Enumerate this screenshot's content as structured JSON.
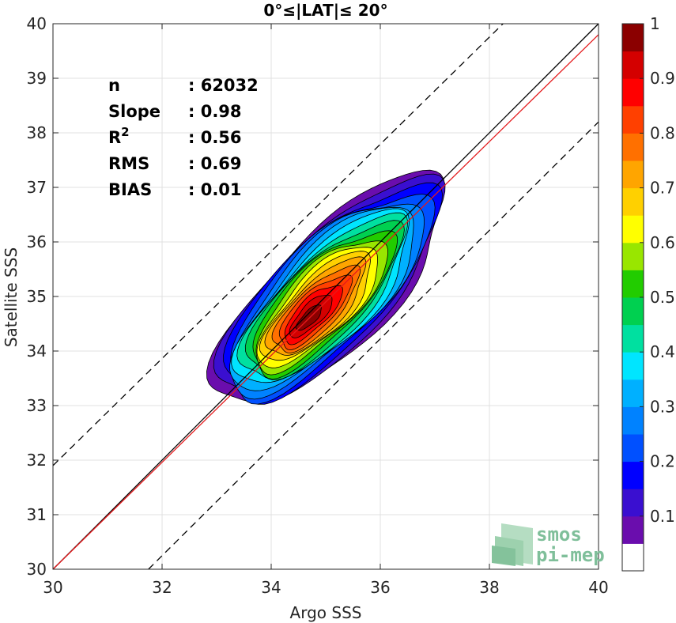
{
  "chart_data": {
    "type": "density_contour",
    "title": "0°≤|LAT|≤ 20°",
    "xlabel": "Argo SSS",
    "ylabel": "Satellite SSS",
    "xlim": [
      30,
      40
    ],
    "ylim": [
      30,
      40
    ],
    "xticks": [
      30,
      32,
      34,
      36,
      38,
      40
    ],
    "yticks": [
      30,
      31,
      32,
      33,
      34,
      35,
      36,
      37,
      38,
      39,
      40
    ],
    "grid": true,
    "density_peak": {
      "x": 35.1,
      "y": 35.1
    },
    "lines": [
      {
        "name": "identity",
        "style": "solid",
        "color": "#000000",
        "points": [
          [
            30,
            30
          ],
          [
            40,
            40
          ]
        ]
      },
      {
        "name": "regression",
        "style": "solid",
        "color": "#e41a1c",
        "slope": 0.98,
        "points": [
          [
            30,
            30.0
          ],
          [
            40,
            39.8
          ]
        ]
      },
      {
        "name": "upper-bound",
        "style": "dashed",
        "color": "#000000",
        "points": [
          [
            30,
            31.9
          ],
          [
            38.25,
            40
          ]
        ]
      },
      {
        "name": "lower-bound",
        "style": "dashed",
        "color": "#000000",
        "points": [
          [
            31.75,
            30
          ],
          [
            40,
            38.2
          ]
        ]
      }
    ],
    "stats": [
      {
        "label": "n",
        "value": ": 62032"
      },
      {
        "label": "Slope",
        "value": ": 0.98"
      },
      {
        "label": "R",
        "sup": "2",
        "value": ": 0.56"
      },
      {
        "label": "RMS",
        "value": ": 0.69"
      },
      {
        "label": "BIAS",
        "value": ": 0.01"
      }
    ],
    "colorbar": {
      "min": 0,
      "max": 1,
      "ticks": [
        0.1,
        0.2,
        0.3,
        0.4,
        0.5,
        0.6,
        0.7,
        0.8,
        0.9,
        1
      ],
      "tick_labels": [
        "0.1",
        "0.2",
        "0.3",
        "0.4",
        "0.5",
        "0.6",
        "0.7",
        "0.8",
        "0.9",
        "1"
      ],
      "colors": [
        "#ffffff",
        "#6a0dad",
        "#3a0fd0",
        "#0000ff",
        "#0050ff",
        "#0082ff",
        "#00b0ff",
        "#00e5ff",
        "#00e0a0",
        "#00d050",
        "#22cc00",
        "#99e600",
        "#ffff00",
        "#ffd000",
        "#ffa500",
        "#ff7000",
        "#ff4000",
        "#ff0000",
        "#d40000",
        "#8b0000"
      ]
    }
  },
  "logo": {
    "line1": "smos",
    "line2": "pi-mep"
  }
}
